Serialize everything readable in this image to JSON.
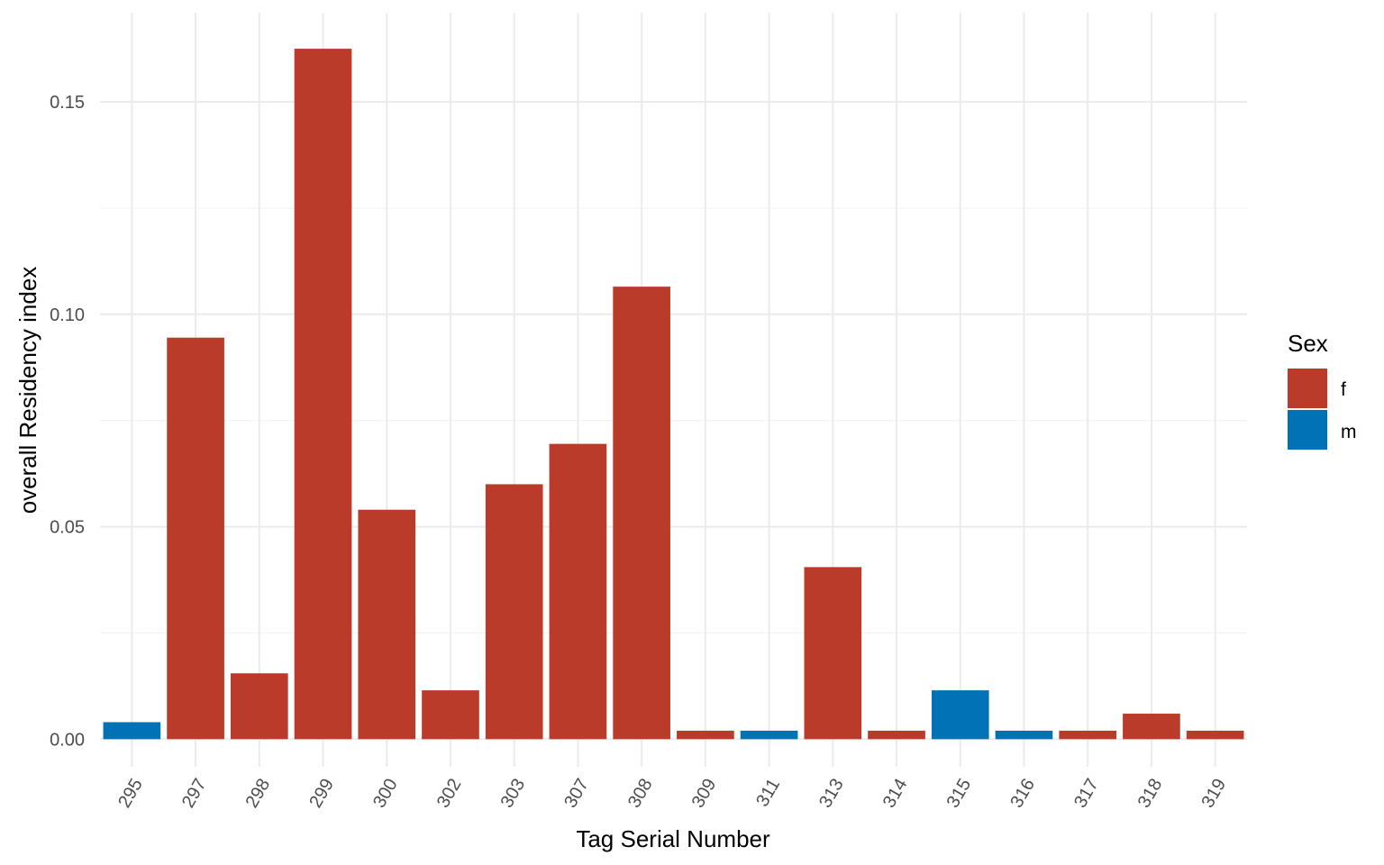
{
  "chart_data": {
    "type": "bar",
    "categories": [
      "295",
      "297",
      "298",
      "299",
      "300",
      "302",
      "303",
      "307",
      "308",
      "309",
      "311",
      "313",
      "314",
      "315",
      "316",
      "317",
      "318",
      "319"
    ],
    "values": [
      0.004,
      0.0945,
      0.0155,
      0.1625,
      0.054,
      0.0115,
      0.06,
      0.0695,
      0.1065,
      0.002,
      0.002,
      0.0405,
      0.002,
      0.0115,
      0.002,
      0.002,
      0.006,
      0.002
    ],
    "sex": [
      "m",
      "f",
      "f",
      "f",
      "f",
      "f",
      "f",
      "f",
      "f",
      "f",
      "m",
      "f",
      "f",
      "m",
      "m",
      "f",
      "f",
      "f"
    ],
    "xlabel": "Tag Serial Number",
    "ylabel": "overall Residency index",
    "ylim": [
      -0.0065,
      0.171
    ],
    "y_ticks": [
      0,
      0.05,
      0.1,
      0.15
    ],
    "y_tick_labels": [
      "0.00",
      "0.05",
      "0.10",
      "0.15"
    ],
    "grid": true,
    "legend": {
      "title": "Sex",
      "position": "right",
      "entries": [
        {
          "key": "f",
          "label": "f",
          "color": "#BB3B2A"
        },
        {
          "key": "m",
          "label": "m",
          "color": "#0072B5"
        }
      ]
    }
  }
}
